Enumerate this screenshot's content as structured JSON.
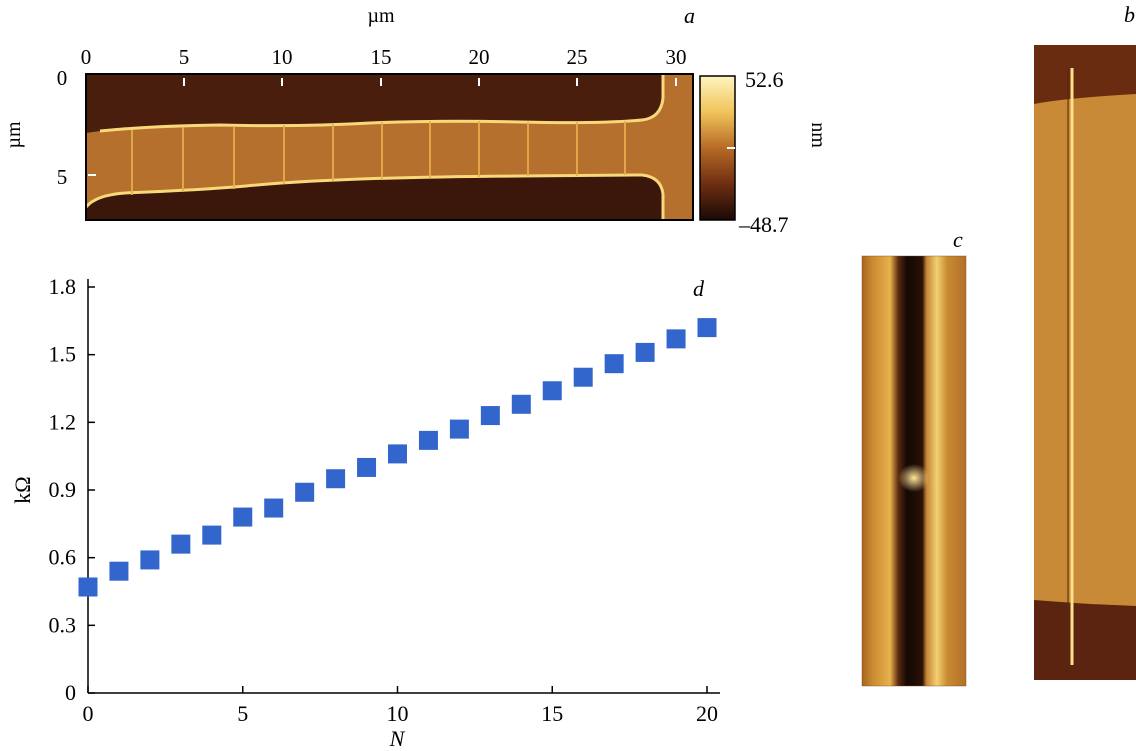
{
  "panels": {
    "a": {
      "letter": "a",
      "x_unit": "µm",
      "y_unit": "µm",
      "x_ticks": [
        "0",
        "5",
        "10",
        "15",
        "20",
        "25",
        "30"
      ],
      "y_ticks": [
        "0",
        "5"
      ],
      "colorbar": {
        "max_label": "52.6",
        "min_label": "–48.7",
        "unit": "nm",
        "max": 52.6,
        "min": -48.7
      }
    },
    "b": {
      "letter": "b"
    },
    "c": {
      "letter": "c"
    },
    "d": {
      "letter": "d"
    }
  },
  "chart_data": {
    "type": "scatter",
    "xlabel": "N",
    "ylabel": "kΩ",
    "xlim": [
      0,
      20.5
    ],
    "ylim": [
      0,
      1.8
    ],
    "x_ticks": [
      0,
      5,
      10,
      15,
      20
    ],
    "y_ticks": [
      0,
      0.3,
      0.6,
      0.9,
      1.2,
      1.5,
      1.8
    ],
    "y_tick_labels": [
      "0",
      "0.3",
      "0.6",
      "0.9",
      "1.2",
      "1.5",
      "1.8"
    ],
    "marker_color": "#3366cc",
    "marker": "square",
    "series": [
      {
        "x": [
          0,
          1,
          2,
          3,
          4,
          5,
          6,
          7,
          8,
          9,
          10,
          11,
          12,
          13,
          14,
          15,
          16,
          17,
          18,
          19,
          20
        ],
        "values": [
          0.47,
          0.54,
          0.59,
          0.66,
          0.7,
          0.78,
          0.82,
          0.89,
          0.95,
          1.0,
          1.06,
          1.12,
          1.17,
          1.23,
          1.28,
          1.34,
          1.4,
          1.46,
          1.51,
          1.57,
          1.62
        ]
      }
    ]
  }
}
